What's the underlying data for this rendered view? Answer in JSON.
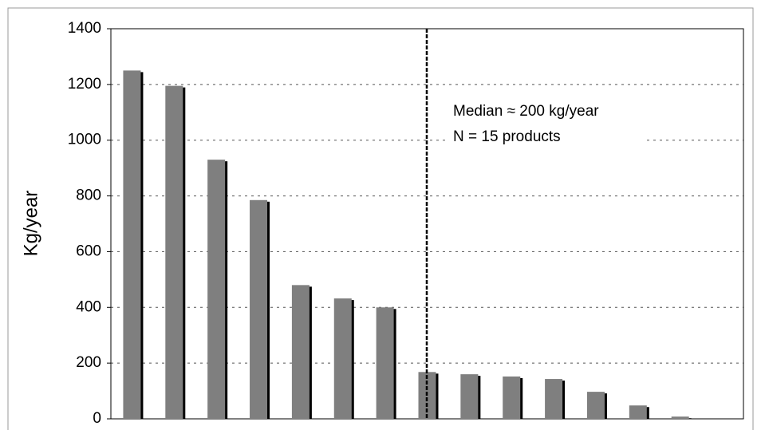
{
  "chart_data": {
    "type": "bar",
    "y_label": "Kg/year",
    "annotations": [
      "Median ≈ 200 kg/year",
      "N = 15 products"
    ],
    "categories": [
      null,
      null,
      null,
      null,
      null,
      null,
      null,
      null,
      null,
      null,
      null,
      null,
      null,
      null,
      null
    ],
    "values": [
      1250,
      1195,
      930,
      785,
      480,
      432,
      400,
      168,
      160,
      152,
      143,
      97,
      48,
      8,
      0
    ],
    "color": "#7f7f7f",
    "ylim": [
      0,
      1400
    ],
    "yticks": [
      0,
      200,
      400,
      600,
      800,
      1000,
      1200,
      1400
    ],
    "grid": true
  }
}
